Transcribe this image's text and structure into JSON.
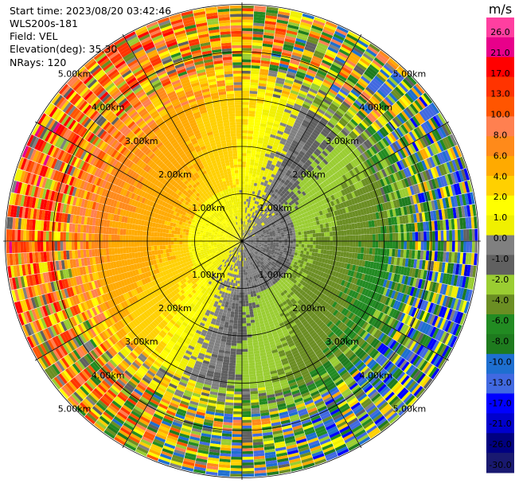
{
  "header": {
    "start_time": "Start time: 2023/08/20 03:42:46",
    "instrument": "WLS200s-181",
    "field": "Field: VEL",
    "elevation": "Elevation(deg): 35.30",
    "nrays": "NRays: 120"
  },
  "colorbar": {
    "unit": "m/s",
    "ticks": [
      "26.0",
      "21.0",
      "17.0",
      "13.0",
      "10.0",
      "8.0",
      "6.0",
      "4.0",
      "2.0",
      "1.0",
      "0.0",
      "-1.0",
      "-2.0",
      "-4.0",
      "-6.0",
      "-8.0",
      "-10.0",
      "-13.0",
      "-17.0",
      "-21.0",
      "-26.0",
      "-30.0"
    ],
    "colors": [
      "#ff3fa0",
      "#e8008a",
      "#ff0000",
      "#ff3300",
      "#ff5500",
      "#ff8050",
      "#ff8a1a",
      "#ffaa00",
      "#ffd000",
      "#ffff00",
      "#f0f000",
      "#808080",
      "#606060",
      "#9acd32",
      "#6b8e23",
      "#228b22",
      "#1e7b1e",
      "#1e6fd0",
      "#4169e1",
      "#0000ff",
      "#0000cd",
      "#000080",
      "#191970"
    ]
  },
  "chart_data": {
    "type": "polar-ppi",
    "title": "",
    "field": "VEL",
    "units": "m/s",
    "nrays": 120,
    "elevation_deg": 35.3,
    "range_rings_km": [
      1.0,
      2.0,
      3.0,
      4.0,
      5.0
    ],
    "range_ring_labels": [
      "1.00km",
      "2.00km",
      "3.00km",
      "4.00km",
      "5.00km"
    ],
    "max_range_km": 5.0,
    "vmin": -30.0,
    "vmax": 26.0,
    "velocity_pattern": "dipole: positive (toward yellow/orange/red) on west/northwest, negative (green/blue) on east/southeast, noisy far range"
  }
}
